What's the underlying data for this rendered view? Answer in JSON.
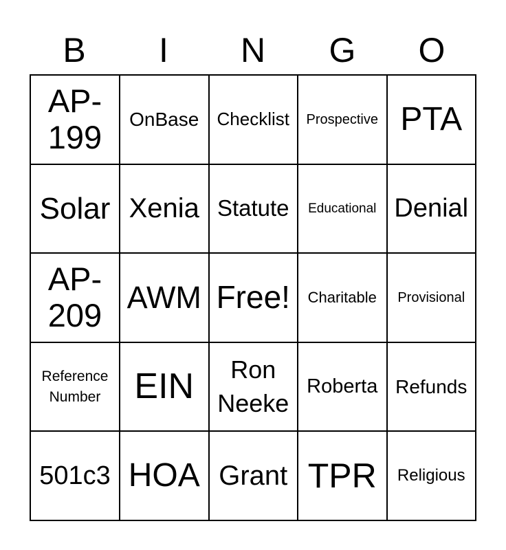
{
  "header": [
    "B",
    "I",
    "N",
    "G",
    "O"
  ],
  "cells": [
    "AP-199",
    "OnBase",
    "Checklist",
    "Prospective",
    "PTA",
    "Solar",
    "Xenia",
    "Statute",
    "Educational",
    "Denial",
    "AP-209",
    "AWM",
    "Free!",
    "Charitable",
    "Provisional",
    "Reference Number",
    "EIN",
    "Ron Neeke",
    "Roberta",
    "Refunds",
    "501c3",
    "HOA",
    "Grant",
    "TPR",
    "Religious"
  ]
}
